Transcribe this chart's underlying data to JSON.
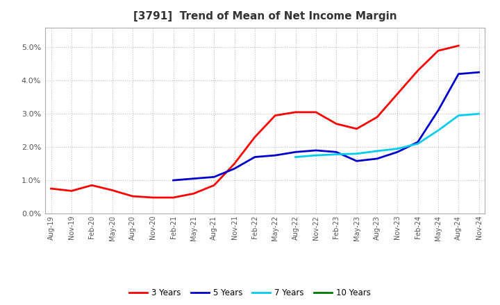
{
  "title": "[3791]  Trend of Mean of Net Income Margin",
  "title_fontsize": 11,
  "background_color": "#ffffff",
  "grid_color": "#bbbbbb",
  "x_labels": [
    "Aug-19",
    "Nov-19",
    "Feb-20",
    "May-20",
    "Aug-20",
    "Nov-20",
    "Feb-21",
    "May-21",
    "Aug-21",
    "Nov-21",
    "Feb-22",
    "May-22",
    "Aug-22",
    "Nov-22",
    "Feb-23",
    "May-23",
    "Aug-23",
    "Nov-23",
    "Feb-24",
    "May-24",
    "Aug-24",
    "Nov-24"
  ],
  "ylim": [
    0.0,
    0.056
  ],
  "yticks": [
    0.0,
    0.01,
    0.02,
    0.03,
    0.04,
    0.05
  ],
  "series": {
    "3 Years": {
      "color": "#ff0000",
      "values": [
        0.0075,
        0.0068,
        0.0085,
        0.007,
        0.0052,
        0.0048,
        0.0048,
        0.006,
        0.0085,
        0.015,
        0.023,
        0.0295,
        0.0305,
        0.0305,
        0.027,
        0.0255,
        0.029,
        0.036,
        0.043,
        0.049,
        0.0505,
        null
      ]
    },
    "5 Years": {
      "color": "#0000cc",
      "values": [
        null,
        null,
        null,
        null,
        null,
        null,
        0.01,
        0.0105,
        0.011,
        0.0135,
        0.017,
        0.0175,
        0.0185,
        0.019,
        0.0185,
        0.0158,
        0.0165,
        0.0185,
        0.0215,
        0.031,
        0.042,
        0.0425
      ]
    },
    "7 Years": {
      "color": "#00ccee",
      "values": [
        null,
        null,
        null,
        null,
        null,
        null,
        null,
        null,
        null,
        null,
        null,
        null,
        0.017,
        0.0175,
        0.0178,
        0.018,
        0.0188,
        0.0195,
        0.021,
        0.025,
        0.0295,
        0.03
      ]
    },
    "10 Years": {
      "color": "#007700",
      "values": [
        null,
        null,
        null,
        null,
        null,
        null,
        null,
        null,
        null,
        null,
        null,
        null,
        null,
        null,
        null,
        null,
        null,
        null,
        null,
        null,
        null,
        null
      ]
    }
  },
  "legend_labels": [
    "3 Years",
    "5 Years",
    "7 Years",
    "10 Years"
  ],
  "legend_colors": [
    "#ff0000",
    "#0000cc",
    "#00ccee",
    "#007700"
  ]
}
